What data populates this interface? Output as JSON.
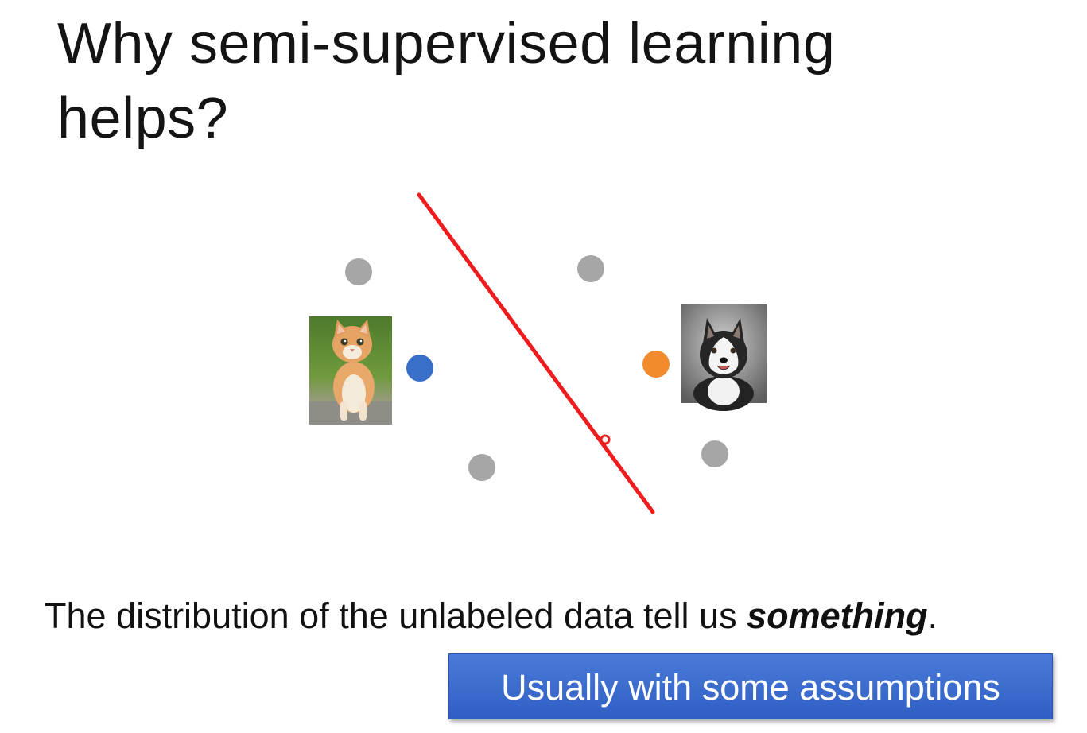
{
  "slide": {
    "title": "Why semi-supervised learning helps?",
    "caption_before": "The distribution of the unlabeled data tell us ",
    "caption_emphasis": "something",
    "caption_after": ".",
    "callout": "Usually with some assumptions"
  },
  "diagram": {
    "labeled_points": [
      {
        "class": "cat",
        "color": "#3a6fc9"
      },
      {
        "class": "dog",
        "color": "#f28a2e"
      }
    ],
    "unlabeled_point_color": "#a6a6a6",
    "unlabeled_point_count": 4,
    "decision_boundary_color": "#ee1c1c",
    "images": [
      "cat-image",
      "dog-image"
    ]
  }
}
